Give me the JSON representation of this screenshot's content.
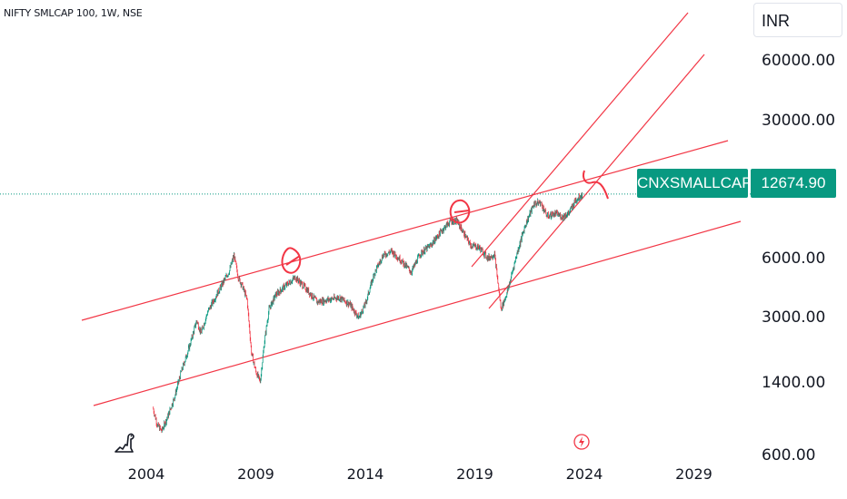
{
  "header": {
    "title": "NIFTY SMLCAP 100, 1W, NSE",
    "currency": "INR"
  },
  "price_tag": {
    "symbol": "CNXSMALLCAP",
    "price": "12674.90",
    "color": "#089981"
  },
  "icons": {
    "logo": "tradingview-dino-icon",
    "flash": "lightning-icon"
  },
  "chart_data": {
    "type": "line",
    "title": "NIFTY SMLCAP 100, 1W, NSE",
    "scale": "log",
    "grid": false,
    "x_ticks": [
      "2004",
      "2009",
      "2014",
      "2019",
      "2024",
      "2029"
    ],
    "y_ticks": [
      "60000.00",
      "30000.00",
      "6000.00",
      "3000.00",
      "1400.00",
      "600.00"
    ],
    "last_value": 12674.9,
    "series": [
      {
        "values": [
          [
            2004.3,
            1050
          ],
          [
            2004.5,
            860
          ],
          [
            2004.7,
            800
          ],
          [
            2005.0,
            960
          ],
          [
            2005.3,
            1200
          ],
          [
            2005.6,
            1600
          ],
          [
            2006.0,
            2200
          ],
          [
            2006.3,
            2900
          ],
          [
            2006.5,
            2500
          ],
          [
            2006.8,
            3200
          ],
          [
            2007.2,
            3900
          ],
          [
            2007.5,
            4500
          ],
          [
            2007.8,
            5200
          ],
          [
            2008.0,
            6200
          ],
          [
            2008.2,
            4800
          ],
          [
            2008.4,
            4300
          ],
          [
            2008.6,
            3700
          ],
          [
            2008.8,
            2000
          ],
          [
            2009.0,
            1600
          ],
          [
            2009.2,
            1420
          ],
          [
            2009.4,
            2300
          ],
          [
            2009.6,
            3300
          ],
          [
            2009.9,
            3900
          ],
          [
            2010.3,
            4300
          ],
          [
            2010.8,
            4800
          ],
          [
            2011.3,
            4200
          ],
          [
            2011.8,
            3600
          ],
          [
            2012.3,
            3700
          ],
          [
            2012.8,
            3800
          ],
          [
            2013.3,
            3500
          ],
          [
            2013.7,
            3000
          ],
          [
            2014.0,
            3500
          ],
          [
            2014.4,
            5000
          ],
          [
            2014.8,
            6200
          ],
          [
            2015.2,
            6500
          ],
          [
            2015.6,
            5900
          ],
          [
            2016.1,
            5100
          ],
          [
            2016.5,
            6300
          ],
          [
            2017.0,
            7000
          ],
          [
            2017.5,
            8300
          ],
          [
            2017.9,
            9300
          ],
          [
            2018.2,
            9200
          ],
          [
            2018.5,
            8000
          ],
          [
            2018.8,
            7000
          ],
          [
            2019.2,
            6800
          ],
          [
            2019.6,
            6000
          ],
          [
            2019.9,
            6300
          ],
          [
            2020.2,
            3300
          ],
          [
            2020.5,
            4100
          ],
          [
            2020.9,
            6200
          ],
          [
            2021.3,
            8800
          ],
          [
            2021.7,
            11300
          ],
          [
            2022.0,
            11500
          ],
          [
            2022.3,
            9800
          ],
          [
            2022.7,
            10100
          ],
          [
            2023.0,
            9700
          ],
          [
            2023.3,
            10200
          ],
          [
            2023.6,
            11800
          ],
          [
            2023.9,
            12674.9
          ]
        ]
      }
    ]
  }
}
